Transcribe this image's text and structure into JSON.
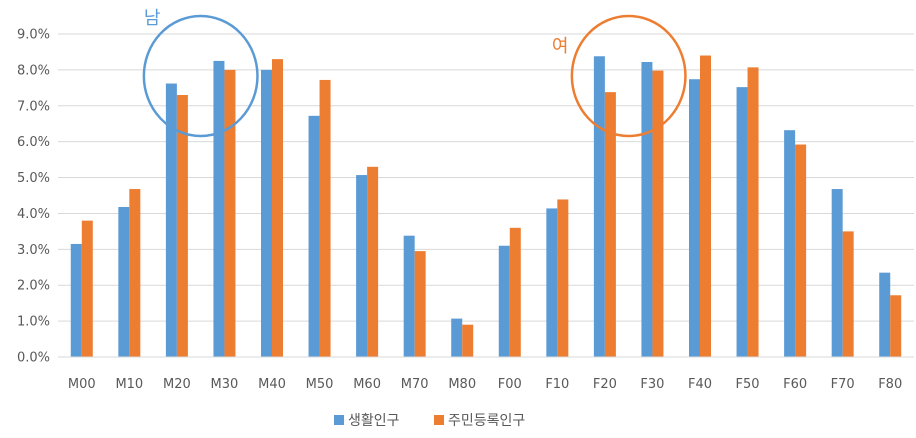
{
  "chart_data": {
    "type": "bar",
    "categories": [
      "M00",
      "M10",
      "M20",
      "M30",
      "M40",
      "M50",
      "M60",
      "M70",
      "M80",
      "F00",
      "F10",
      "F20",
      "F30",
      "F40",
      "F50",
      "F60",
      "F70",
      "F80"
    ],
    "series": [
      {
        "name": "생활인구",
        "color": "#5B9BD5",
        "values": [
          3.15,
          4.18,
          7.62,
          8.25,
          8.0,
          6.72,
          5.07,
          3.38,
          1.07,
          3.1,
          4.14,
          8.38,
          8.22,
          7.74,
          7.52,
          6.32,
          4.68,
          2.35
        ]
      },
      {
        "name": "주민등록인구",
        "color": "#ED7D31",
        "values": [
          3.8,
          4.68,
          7.3,
          8.0,
          8.3,
          7.72,
          5.3,
          2.95,
          0.9,
          3.6,
          4.39,
          7.38,
          7.98,
          8.4,
          8.07,
          5.92,
          3.5,
          1.72
        ]
      }
    ],
    "ylim": [
      0,
      9
    ],
    "y_ticks": [
      "0.0%",
      "1.0%",
      "2.0%",
      "3.0%",
      "4.0%",
      "5.0%",
      "6.0%",
      "7.0%",
      "8.0%",
      "9.0%"
    ],
    "grid": true,
    "legend_position": "bottom",
    "annotations": [
      {
        "text": "남",
        "color": "#5B9BD5",
        "encloses": [
          "M20",
          "M30"
        ]
      },
      {
        "text": "여",
        "color": "#ED7D31",
        "encloses": [
          "F20",
          "F30"
        ]
      }
    ]
  }
}
